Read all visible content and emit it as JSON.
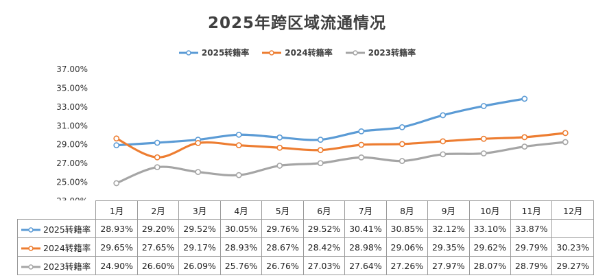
{
  "chart_data": {
    "type": "line",
    "title": "2025年跨区域流通情况",
    "categories": [
      "1月",
      "2月",
      "3月",
      "4月",
      "5月",
      "6月",
      "7月",
      "8月",
      "9月",
      "10月",
      "11月",
      "12月"
    ],
    "ylim": [
      23,
      37
    ],
    "y_ticks": [
      "23.00%",
      "25.00%",
      "27.00%",
      "29.00%",
      "31.00%",
      "33.00%",
      "35.00%",
      "37.00%"
    ],
    "grid": false,
    "legend": "top-center",
    "series": [
      {
        "name": "2025转籍率",
        "color": "#5b9bd5",
        "values": [
          28.93,
          29.2,
          29.52,
          30.05,
          29.76,
          29.52,
          30.41,
          30.85,
          32.12,
          33.1,
          33.87,
          null
        ],
        "labels": [
          "28.93%",
          "29.20%",
          "29.52%",
          "30.05%",
          "29.76%",
          "29.52%",
          "30.41%",
          "30.85%",
          "32.12%",
          "33.10%",
          "33.87%",
          ""
        ]
      },
      {
        "name": "2024转籍率",
        "color": "#ed7d31",
        "values": [
          29.65,
          27.65,
          29.17,
          28.93,
          28.67,
          28.42,
          28.98,
          29.06,
          29.35,
          29.62,
          29.79,
          30.23
        ],
        "labels": [
          "29.65%",
          "27.65%",
          "29.17%",
          "28.93%",
          "28.67%",
          "28.42%",
          "28.98%",
          "29.06%",
          "29.35%",
          "29.62%",
          "29.79%",
          "30.23%"
        ]
      },
      {
        "name": "2023转籍率",
        "color": "#a5a5a5",
        "values": [
          24.9,
          26.6,
          26.09,
          25.76,
          26.76,
          27.03,
          27.64,
          27.26,
          27.97,
          28.07,
          28.79,
          29.27
        ],
        "labels": [
          "24.90%",
          "26.60%",
          "26.09%",
          "25.76%",
          "26.76%",
          "27.03%",
          "27.64%",
          "27.26%",
          "27.97%",
          "28.07%",
          "28.79%",
          "29.27%"
        ]
      }
    ]
  }
}
